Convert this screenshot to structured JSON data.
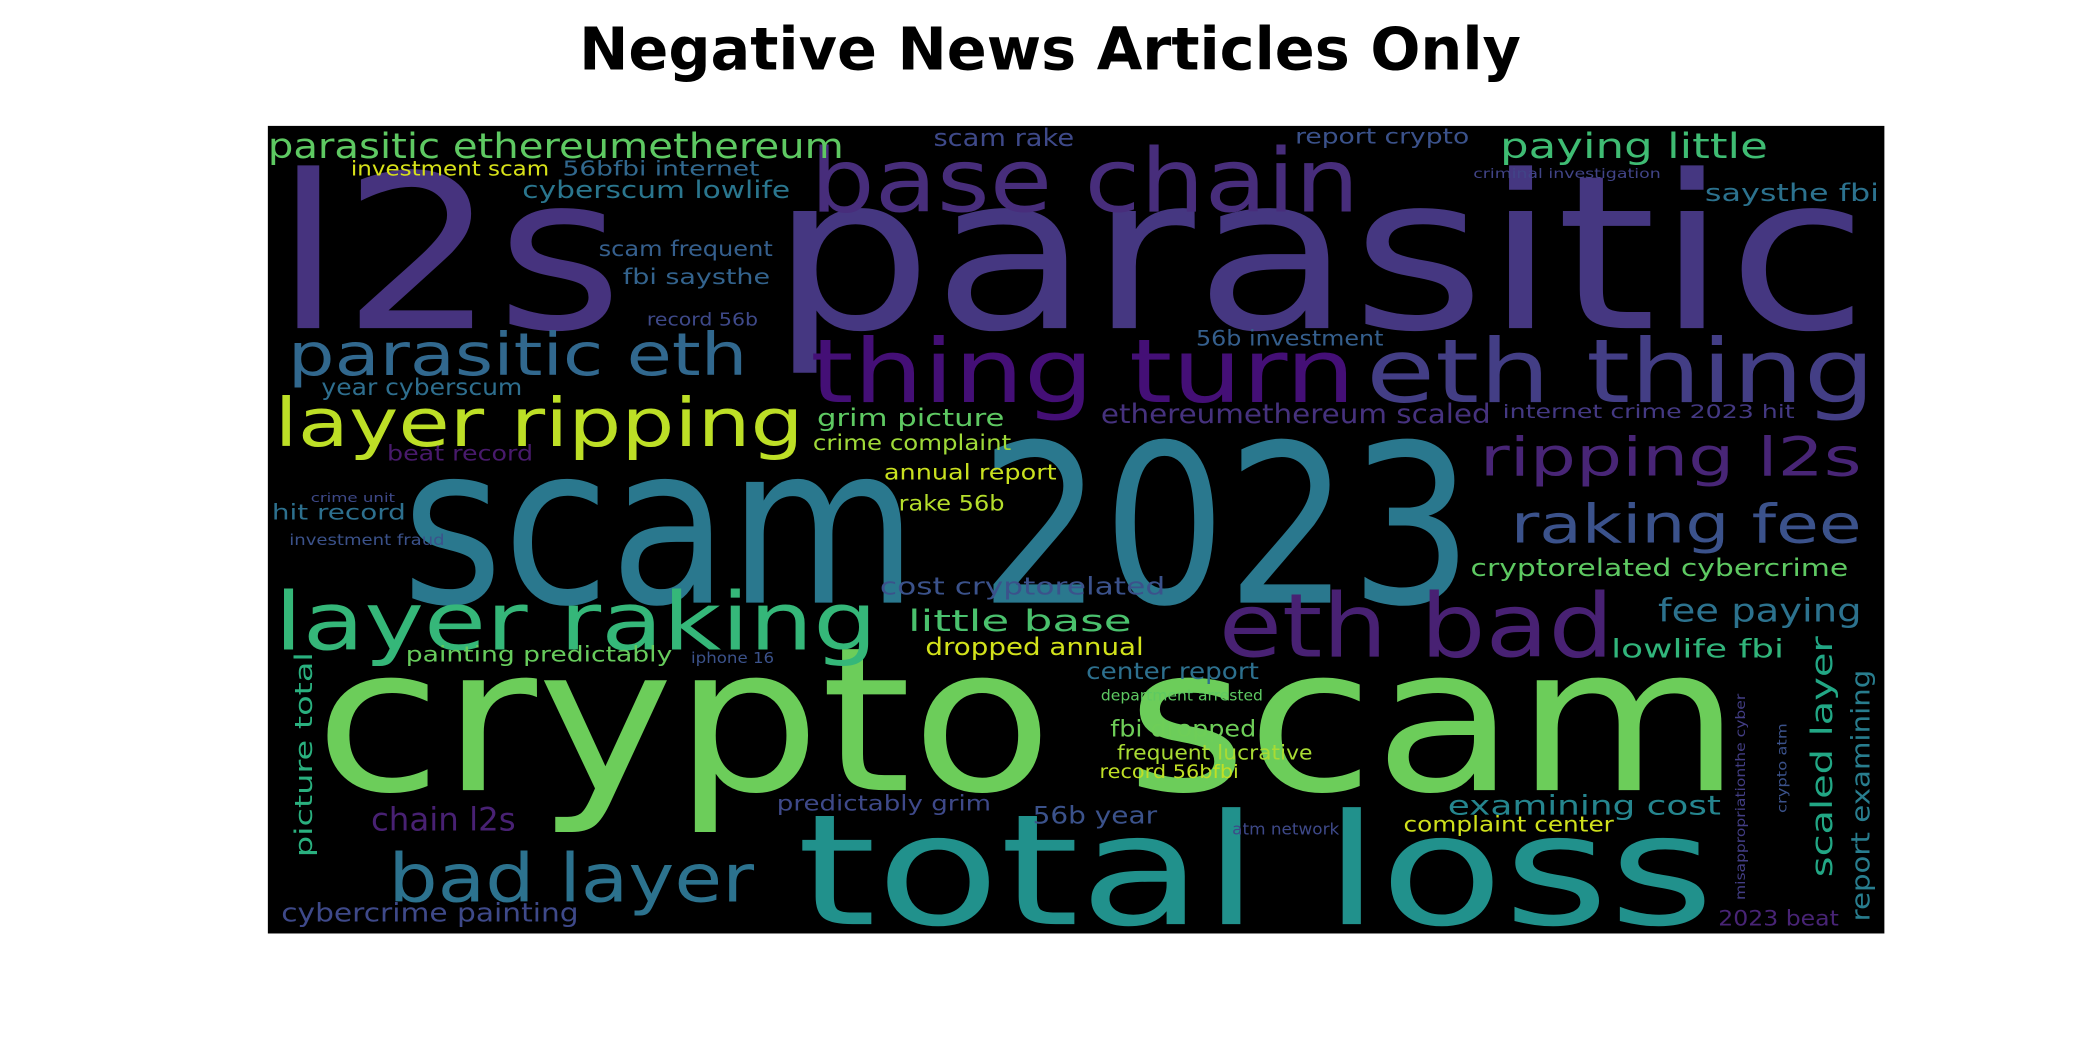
{
  "chart_data": {
    "type": "wordcloud",
    "title": "Negative News Articles Only",
    "background": "#000000",
    "words": [
      {
        "text": "l2s",
        "color": "#46337e"
      },
      {
        "text": "parasitic",
        "color": "#453781"
      },
      {
        "text": "scam 2023",
        "color": "#2a788e"
      },
      {
        "text": "crypto scam",
        "color": "#6ccd5a"
      },
      {
        "text": "total loss",
        "color": "#21918c"
      },
      {
        "text": "base chain",
        "color": "#472d7b"
      },
      {
        "text": "thing turn",
        "color": "#440f76"
      },
      {
        "text": "eth thing",
        "color": "#433e85"
      },
      {
        "text": "eth bad",
        "color": "#482173"
      },
      {
        "text": "layer raking",
        "color": "#35b779"
      },
      {
        "text": "layer ripping",
        "color": "#bddf26"
      },
      {
        "text": "parasitic eth",
        "color": "#31688e"
      },
      {
        "text": "bad layer",
        "color": "#2c728e"
      },
      {
        "text": "ripping l2s",
        "color": "#482576"
      },
      {
        "text": "raking fee",
        "color": "#3b528b"
      },
      {
        "text": "parasitic ethereumethereum",
        "color": "#5ec962"
      },
      {
        "text": "paying little",
        "color": "#3fbc73"
      },
      {
        "text": "investment scam",
        "color": "#d8e219"
      },
      {
        "text": "56bfbi internet",
        "color": "#31688e"
      },
      {
        "text": "scam rake",
        "color": "#3e4989"
      },
      {
        "text": "report crypto",
        "color": "#3b528b"
      },
      {
        "text": "criminal investigation",
        "color": "#414487"
      },
      {
        "text": "cyberscum lowlife",
        "color": "#2a768e"
      },
      {
        "text": "saysthe fbi",
        "color": "#2c728e"
      },
      {
        "text": "scam frequent",
        "color": "#355f8d"
      },
      {
        "text": "fbi saysthe",
        "color": "#33638d"
      },
      {
        "text": "record 56b",
        "color": "#3e4989"
      },
      {
        "text": "56b investment",
        "color": "#355f8d"
      },
      {
        "text": "year cyberscum",
        "color": "#2e6e8e"
      },
      {
        "text": "grim picture",
        "color": "#5ec962"
      },
      {
        "text": "ethereumethereum scaled",
        "color": "#46327e"
      },
      {
        "text": "internet crime 2023 hit",
        "color": "#443983"
      },
      {
        "text": "crime complaint",
        "color": "#a0da39"
      },
      {
        "text": "beat record",
        "color": "#481a6c"
      },
      {
        "text": "annual report",
        "color": "#cae11f"
      },
      {
        "text": "crime unit",
        "color": "#3e4989"
      },
      {
        "text": "hit record",
        "color": "#2d708e"
      },
      {
        "text": "rake 56b",
        "color": "#b5de2b"
      },
      {
        "text": "investment fraud",
        "color": "#3b528b"
      },
      {
        "text": "cryptorelated cybercrime",
        "color": "#5ec962"
      },
      {
        "text": "cost cryptorelated",
        "color": "#3b528b"
      },
      {
        "text": "fee paying",
        "color": "#2c728e"
      },
      {
        "text": "little base",
        "color": "#4ac16d"
      },
      {
        "text": "dropped annual",
        "color": "#d2e21b"
      },
      {
        "text": "painting predictably",
        "color": "#67cc5c"
      },
      {
        "text": "iphone 16",
        "color": "#3b528b"
      },
      {
        "text": "lowlife fbi",
        "color": "#31b57b"
      },
      {
        "text": "center report",
        "color": "#2d708e"
      },
      {
        "text": "department arrested",
        "color": "#5ec962"
      },
      {
        "text": "fbi dropped",
        "color": "#6ece58"
      },
      {
        "text": "frequent lucrative",
        "color": "#a8db34"
      },
      {
        "text": "record 56bfbi",
        "color": "#c0df25"
      },
      {
        "text": "predictably grim",
        "color": "#3e4989"
      },
      {
        "text": "examining cost",
        "color": "#25858e"
      },
      {
        "text": "chain l2s",
        "color": "#482173"
      },
      {
        "text": "56b year",
        "color": "#3b528b"
      },
      {
        "text": "complaint center",
        "color": "#d0e11c"
      },
      {
        "text": "atm network",
        "color": "#3e4989"
      },
      {
        "text": "cybercrime painting",
        "color": "#3e4989"
      },
      {
        "text": "2023 beat",
        "color": "#482475"
      },
      {
        "text": "picture total",
        "color": "#2ab07f"
      },
      {
        "text": "scaled layer",
        "color": "#22a785"
      },
      {
        "text": "report examining",
        "color": "#287d8e"
      },
      {
        "text": "misappropriationthe cyber",
        "color": "#433e85"
      },
      {
        "text": "crypto atm",
        "color": "#3b528b"
      }
    ]
  }
}
